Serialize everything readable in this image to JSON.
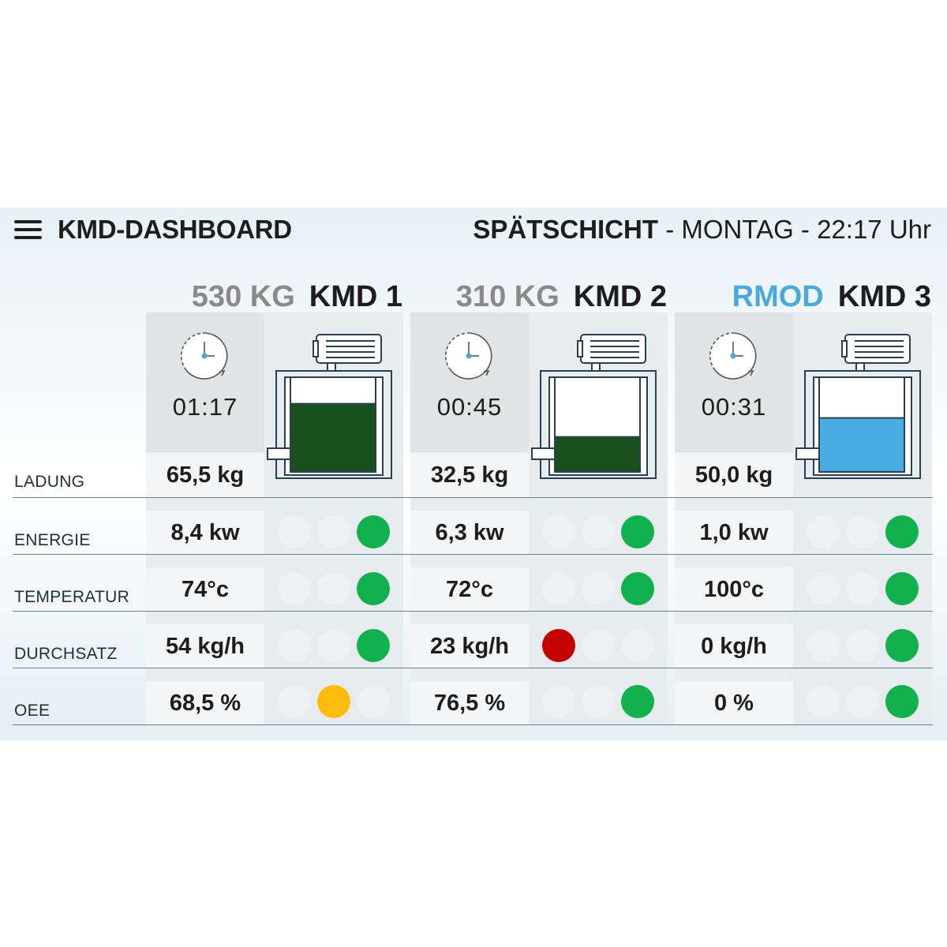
{
  "header": {
    "menu_icon": "hamburger-menu-icon",
    "title": "KMD-DASHBOARD",
    "shift_name": "SPÄTSCHICHT",
    "shift_rest": " - MONTAG - 22:17 Uhr"
  },
  "row_labels": [
    "LADUNG",
    "ENERGIE",
    "TEMPERATUR",
    "DURCHSATZ",
    "OEE"
  ],
  "colors": {
    "fill_green": "#1a4f20",
    "fill_blue": "#48ade0",
    "status_green": "#12b04e",
    "status_red": "#c50000",
    "status_amber": "#ffbb0e",
    "status_off": "#eef0f1"
  },
  "units": [
    {
      "weight": "530 KG",
      "name": "KMD 1",
      "timer": "01:17",
      "fill_level": 0.72,
      "fill_color": "green",
      "ladung": "65,5 kg",
      "energie": "8,4 kw",
      "temperatur": "74°c",
      "durchsatz": "54 kg/h",
      "oee": "68,5 %",
      "status": {
        "energie": 3,
        "temperatur": 3,
        "durchsatz": 3,
        "oee": 2
      }
    },
    {
      "weight": "310 KG",
      "name": "KMD 2",
      "timer": "00:45",
      "fill_level": 0.37,
      "fill_color": "green",
      "ladung": "32,5 kg",
      "energie": "6,3 kw",
      "temperatur": "72°c",
      "durchsatz": "23 kg/h",
      "oee": "76,5 %",
      "status": {
        "energie": 3,
        "temperatur": 3,
        "durchsatz": 1,
        "oee": 3
      }
    },
    {
      "weight": "RMOD",
      "name": "KMD 3",
      "timer": "00:31",
      "fill_level": 0.57,
      "fill_color": "blue",
      "ladung": "50,0 kg",
      "energie": "1,0 kw",
      "temperatur": "100°c",
      "durchsatz": "0 kg/h",
      "oee": "0 %",
      "status": {
        "energie": 3,
        "temperatur": 3,
        "durchsatz": 3,
        "oee": 3
      }
    }
  ]
}
